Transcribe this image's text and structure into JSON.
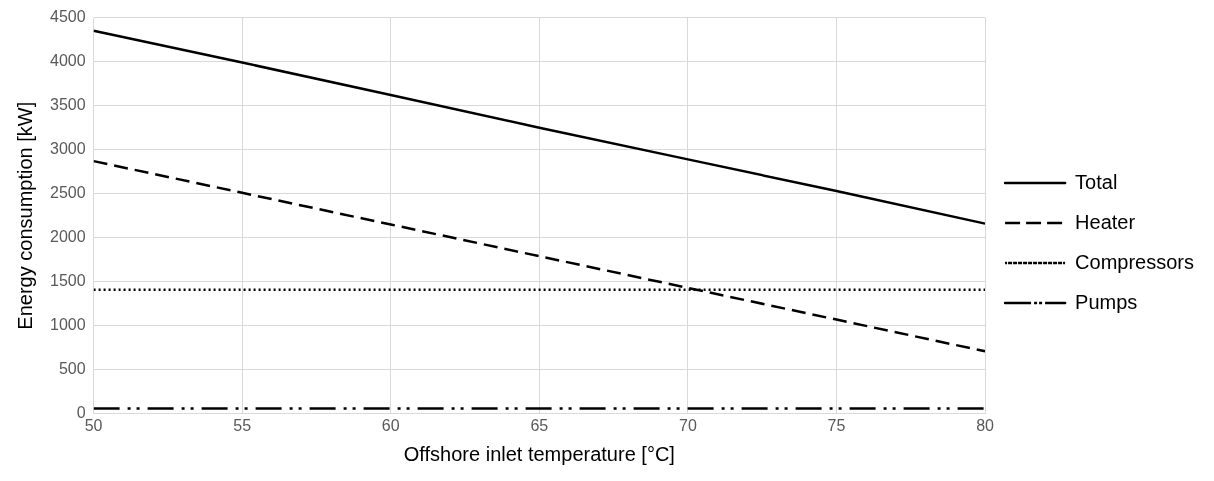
{
  "chart_data": {
    "type": "line",
    "xlabel": "Offshore inlet temperature [°C]",
    "ylabel": "Energy consumption [kW]",
    "x": [
      50,
      55,
      60,
      65,
      70,
      75,
      80
    ],
    "series": [
      {
        "name": "Total",
        "color": "#000000",
        "line_style": "solid",
        "values": [
          4350,
          3990,
          3620,
          3250,
          2890,
          2530,
          2160
        ]
      },
      {
        "name": "Heater",
        "color": "#000000",
        "line_style": "dashed",
        "values": [
          2870,
          2510,
          2150,
          1790,
          1430,
          1070,
          710
        ]
      },
      {
        "name": "Compressors",
        "color": "#000000",
        "line_style": "dotted",
        "values": [
          1410,
          1410,
          1410,
          1410,
          1410,
          1410,
          1410
        ]
      },
      {
        "name": "Pumps",
        "color": "#000000",
        "line_style": "dashdotdot",
        "values": [
          60,
          60,
          60,
          60,
          60,
          60,
          60
        ]
      }
    ],
    "xlim": [
      50,
      80
    ],
    "xticks": [
      50,
      55,
      60,
      65,
      70,
      75,
      80
    ],
    "ylim": [
      0,
      4500
    ],
    "yticks": [
      0,
      500,
      1000,
      1500,
      2000,
      2500,
      3000,
      3500,
      4000,
      4500
    ],
    "grid": true,
    "legend": "right",
    "marker": "none"
  }
}
